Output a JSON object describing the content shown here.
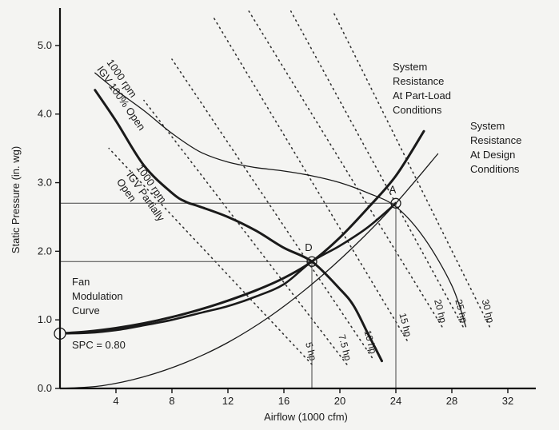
{
  "chart_data": {
    "type": "line",
    "xlabel": "Airflow (1000 cfm)",
    "ylabel": "Static Pressure (in. wg)",
    "xlim": [
      0,
      34
    ],
    "ylim": [
      0,
      5.5
    ],
    "x_ticks": [
      "4",
      "8",
      "12",
      "16",
      "20",
      "24",
      "28",
      "32"
    ],
    "y_ticks": [
      "0.0",
      "1.0",
      "2.0",
      "3.0",
      "4.0",
      "5.0"
    ],
    "grid": false,
    "fan_curves": [
      {
        "name": "1000 rpm IGV 100% Open",
        "label_lines": [
          "1000 rpm",
          "IGV 100% Open"
        ],
        "x": [
          2.5,
          4,
          6,
          8,
          10,
          12,
          14,
          16,
          18,
          20,
          22,
          24,
          26,
          28,
          29
        ],
        "y": [
          4.6,
          4.35,
          4.05,
          3.72,
          3.45,
          3.3,
          3.22,
          3.17,
          3.1,
          3.0,
          2.85,
          2.65,
          2.2,
          1.5,
          0.9
        ]
      },
      {
        "name": "1000 rpm IGV Partially Open",
        "label_lines": [
          "1000 rpm",
          "IGV Partially",
          "Open"
        ],
        "x": [
          2.5,
          4,
          6,
          8,
          9,
          10,
          12,
          14,
          16,
          18,
          20,
          21,
          22,
          22.5,
          23
        ],
        "y": [
          4.35,
          3.9,
          3.25,
          2.85,
          2.72,
          2.65,
          2.5,
          2.3,
          2.05,
          1.85,
          1.45,
          1.2,
          0.8,
          0.6,
          0.4
        ]
      }
    ],
    "system_curves": [
      {
        "name": "System Resistance At Part-Load Conditions",
        "label_lines": [
          "System",
          "Resistance",
          "At Part-Load",
          "Conditions"
        ],
        "x": [
          0,
          2,
          4,
          6,
          8,
          10,
          12,
          14,
          16,
          18,
          20,
          22,
          24,
          26
        ],
        "y": [
          0.8,
          0.83,
          0.88,
          0.95,
          1.04,
          1.15,
          1.28,
          1.43,
          1.61,
          1.85,
          2.2,
          2.63,
          3.1,
          3.75
        ]
      },
      {
        "name": "System Resistance At Design Conditions",
        "label_lines": [
          "System",
          "Resistance",
          "At Design",
          "Conditions"
        ],
        "x": [
          0,
          3,
          6,
          9,
          12,
          15,
          18,
          21,
          24,
          27
        ],
        "y": [
          0,
          0.04,
          0.17,
          0.38,
          0.67,
          1.05,
          1.52,
          2.07,
          2.7,
          3.42
        ]
      }
    ],
    "modulation_curve": {
      "name": "Fan Modulation Curve",
      "label_lines": [
        "Fan",
        "Modulation",
        "Curve"
      ],
      "x": [
        0,
        2,
        4,
        6,
        8,
        10,
        12,
        14,
        16,
        18,
        20,
        22,
        24
      ],
      "y": [
        0.8,
        0.81,
        0.85,
        0.92,
        1.0,
        1.1,
        1.2,
        1.34,
        1.52,
        1.85,
        2.08,
        2.35,
        2.7
      ]
    },
    "spc_label": "SPC = 0.80",
    "spc_point": {
      "x": 0,
      "y": 0.8
    },
    "operating_points": [
      {
        "label": "A",
        "x": 24,
        "y": 2.7
      },
      {
        "label": "D",
        "x": 18,
        "y": 1.85
      }
    ],
    "hp_lines": [
      {
        "label": "5 hp",
        "x0": 18,
        "y0": 0.35,
        "x1": 3.5,
        "y1": 3.5
      },
      {
        "label": "7.5 hp",
        "x0": 20.5,
        "y0": 0.35,
        "x1": 6,
        "y1": 4.2
      },
      {
        "label": "10 hp",
        "x0": 22.3,
        "y0": 0.45,
        "x1": 8,
        "y1": 4.8
      },
      {
        "label": "15 hp",
        "x0": 24.8,
        "y0": 0.7,
        "x1": 11,
        "y1": 5.4
      },
      {
        "label": "20 hp",
        "x0": 27.3,
        "y0": 0.9,
        "x1": 13.5,
        "y1": 5.5
      },
      {
        "label": "25 hp",
        "x0": 28.8,
        "y0": 0.9,
        "x1": 16.5,
        "y1": 5.5
      },
      {
        "label": "30 hp",
        "x0": 30.7,
        "y0": 0.9,
        "x1": 19.5,
        "y1": 5.5
      }
    ]
  }
}
